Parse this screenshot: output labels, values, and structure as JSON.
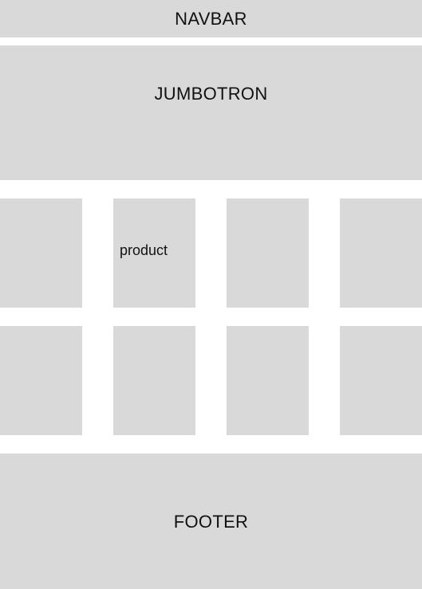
{
  "navbar": {
    "label": "NAVBAR"
  },
  "jumbotron": {
    "label": "JUMBOTRON"
  },
  "products": {
    "rows": [
      {
        "cards": [
          {
            "label": ""
          },
          {
            "label": "product"
          },
          {
            "label": ""
          },
          {
            "label": ""
          }
        ]
      },
      {
        "cards": [
          {
            "label": ""
          },
          {
            "label": ""
          },
          {
            "label": ""
          },
          {
            "label": ""
          }
        ]
      }
    ]
  },
  "footer": {
    "label": "FOOTER"
  },
  "colors": {
    "placeholder_fill": "#d9d9d9",
    "background": "#ffffff",
    "text": "#111111"
  }
}
